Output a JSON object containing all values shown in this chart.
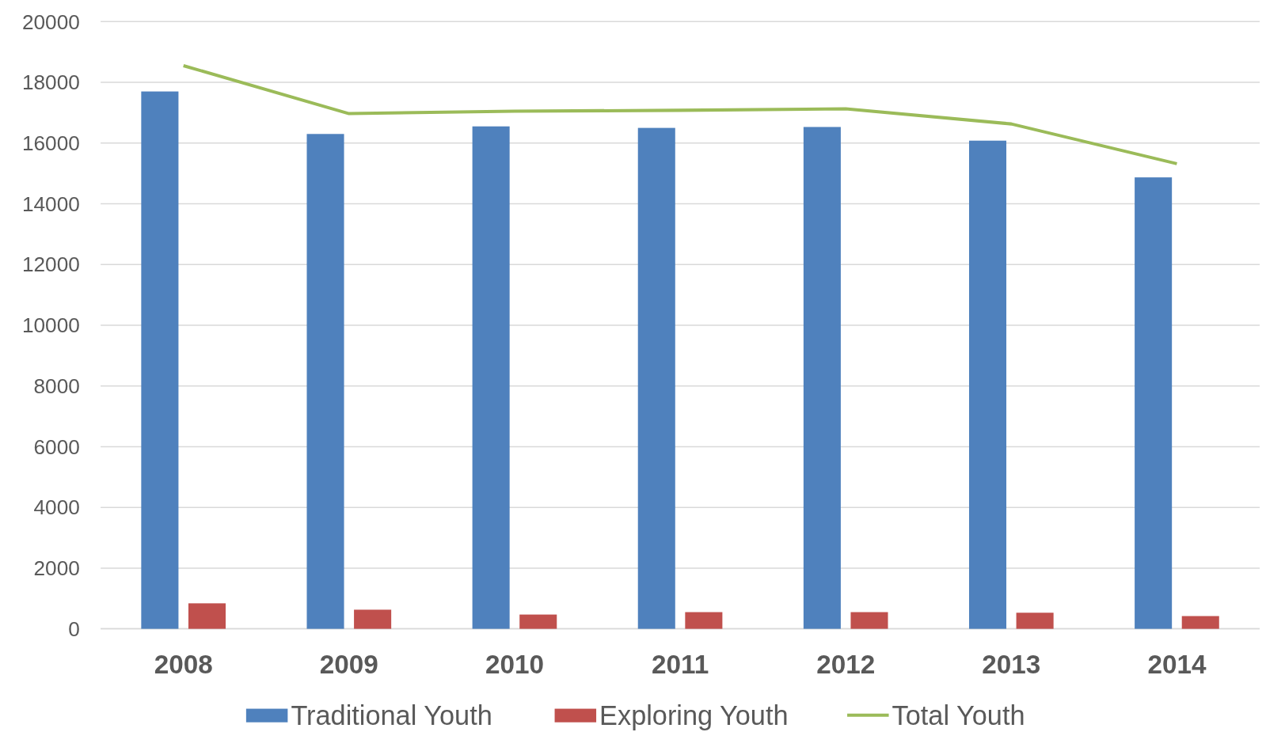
{
  "chart_data": {
    "type": "bar",
    "categories": [
      "2008",
      "2009",
      "2010",
      "2011",
      "2012",
      "2013",
      "2014"
    ],
    "series": [
      {
        "name": "Traditional Youth",
        "color": "#4f81bd",
        "values": [
          17700,
          16300,
          16550,
          16500,
          16530,
          16080,
          14870
        ]
      },
      {
        "name": "Exploring Youth",
        "color": "#c0504d",
        "values": [
          840,
          630,
          470,
          550,
          550,
          530,
          420
        ]
      },
      {
        "name": "Total Youth",
        "type": "line",
        "color": "#9bbb59",
        "values": [
          18550,
          16970,
          17050,
          17080,
          17130,
          16630,
          15320
        ]
      }
    ],
    "ylim": [
      0,
      20000
    ],
    "yticks": [
      0,
      2000,
      4000,
      6000,
      8000,
      10000,
      12000,
      14000,
      16000,
      18000,
      20000
    ],
    "grid": "y",
    "legend": "bottom",
    "marker": "none",
    "line_style": "solid"
  }
}
